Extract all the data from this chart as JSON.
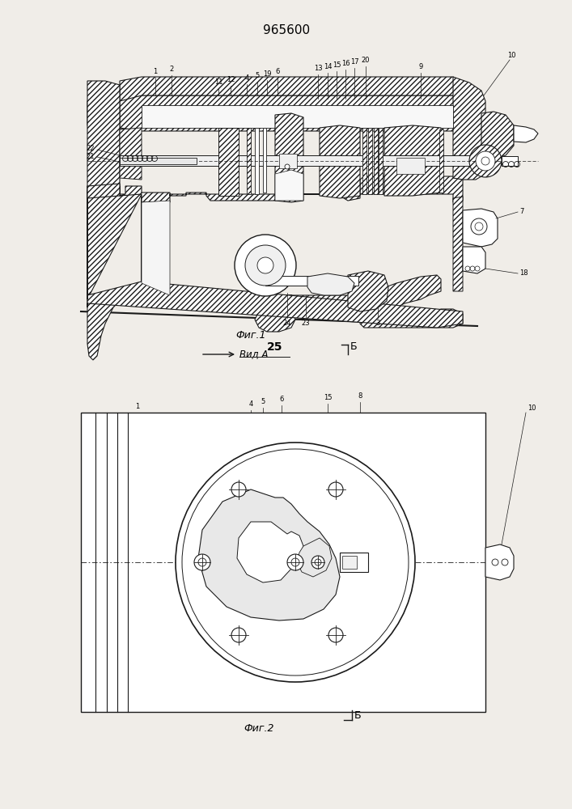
{
  "title": "965600",
  "fig1_caption": "Фиг.1",
  "fig2_caption": "Фиг.2",
  "view_label": "Вид А",
  "section_label": "Б",
  "background": "#f0ede8",
  "line_color": "#1a1a1a",
  "hatch_lw": 0.4,
  "draw_lw": 0.8
}
